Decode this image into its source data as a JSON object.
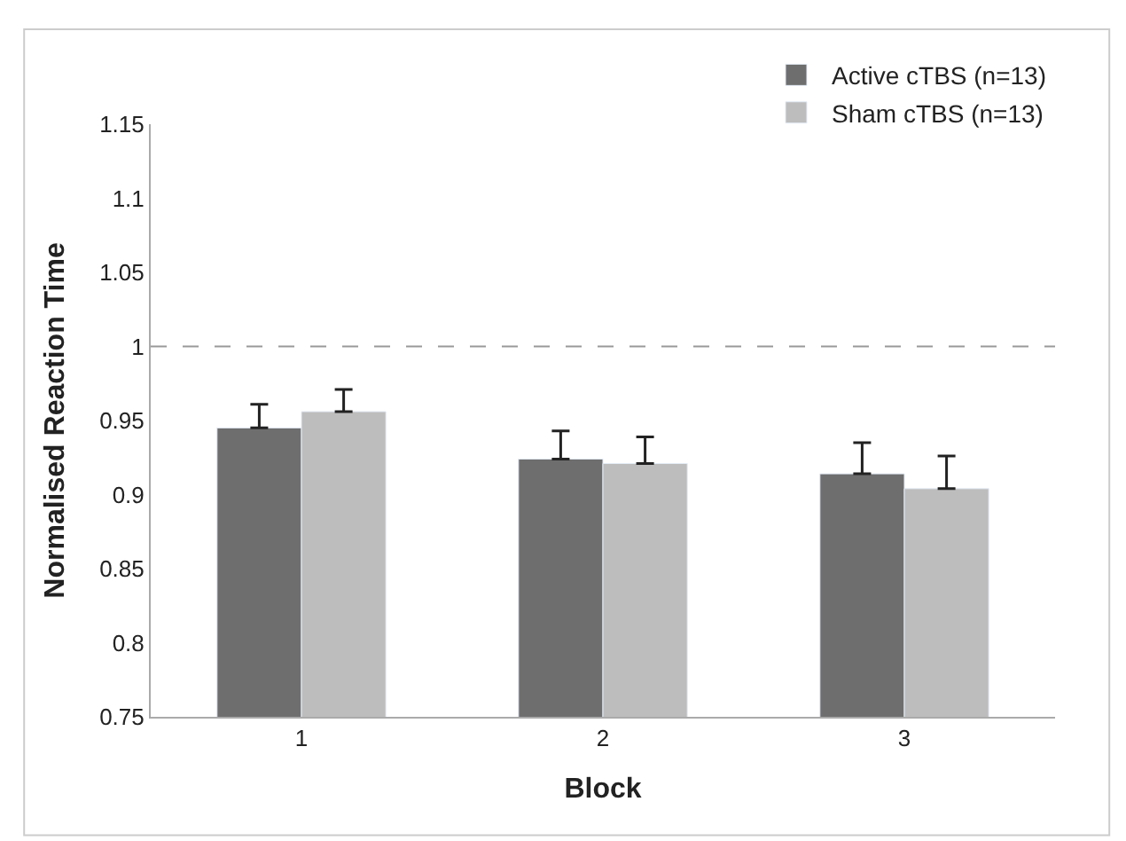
{
  "chart_data": {
    "type": "bar",
    "xlabel": "Block",
    "ylabel": "Normalised Reaction Time",
    "categories": [
      "1",
      "2",
      "3"
    ],
    "series": [
      {
        "name": "Active cTBS (n=13)",
        "color": "#6e6e6e",
        "values": [
          0.945,
          0.924,
          0.914
        ],
        "errors": [
          [
            0.945,
            0.961
          ],
          [
            0.924,
            0.943
          ],
          [
            0.914,
            0.935
          ]
        ]
      },
      {
        "name": "Sham cTBS (n=13)",
        "color": "#bdbdbd",
        "values": [
          0.956,
          0.921,
          0.904
        ],
        "errors": [
          [
            0.956,
            0.971
          ],
          [
            0.921,
            0.939
          ],
          [
            0.904,
            0.926
          ]
        ]
      }
    ],
    "ylim": [
      0.75,
      1.15
    ],
    "yticks": [
      0.75,
      0.8,
      0.85,
      0.9,
      0.95,
      1,
      1.05,
      1.1,
      1.15
    ],
    "legend": "top right",
    "ref_lines": [
      {
        "axis": "y",
        "value": 1,
        "color": "#999999",
        "line_style": "dashed"
      }
    ]
  }
}
